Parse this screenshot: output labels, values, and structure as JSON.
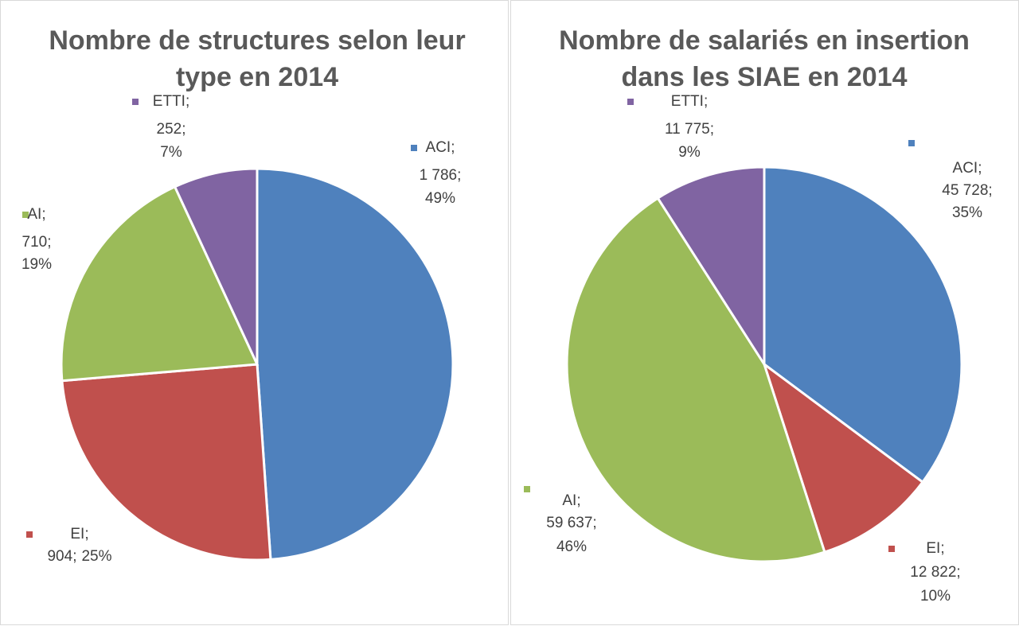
{
  "chart_data": [
    {
      "type": "pie",
      "title": "Nombre de structures selon leur type en 2014",
      "separator": ";",
      "categories": [
        "ACI",
        "EI",
        "AI",
        "ETTI"
      ],
      "values": [
        1786,
        904,
        710,
        252
      ],
      "value_labels": [
        "1 786",
        "904",
        "710",
        "252"
      ],
      "percents": [
        49,
        25,
        19,
        7
      ],
      "percent_labels": [
        "49%",
        "25%",
        "19%",
        "7%"
      ],
      "colors": [
        "#4f81bd",
        "#c0504d",
        "#9bbb59",
        "#8064a2"
      ]
    },
    {
      "type": "pie",
      "title": "Nombre de salariés en insertion dans les SIAE en 2014",
      "separator": ";",
      "categories": [
        "ACI",
        "EI",
        "AI",
        "ETTI"
      ],
      "values": [
        45728,
        12822,
        59637,
        11775
      ],
      "value_labels": [
        "45 728",
        "12 822",
        "59 637",
        "11 775"
      ],
      "percents": [
        35,
        10,
        46,
        9
      ],
      "percent_labels": [
        "35%",
        "10%",
        "46%",
        "9%"
      ],
      "colors": [
        "#4f81bd",
        "#c0504d",
        "#9bbb59",
        "#8064a2"
      ]
    }
  ]
}
